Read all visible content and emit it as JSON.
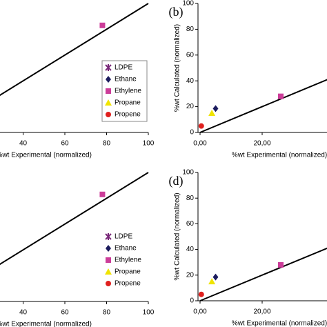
{
  "chart_data": [
    {
      "type": "scatter",
      "label": null,
      "xlabel": "%wt Experimental (normalized)",
      "ylabel": null,
      "xlim": [
        0,
        100
      ],
      "ylim": [
        0,
        100
      ],
      "xticks": [
        40,
        60,
        80,
        100
      ],
      "line": {
        "x": [
          0,
          100
        ],
        "values": [
          0,
          100
        ]
      },
      "legend": "right",
      "legend_frame": true,
      "series": [
        {
          "name": "LDPE",
          "color": "#7a2a7a",
          "marker": "asterisk",
          "x": [],
          "values": []
        },
        {
          "name": "Ethane",
          "color": "#1c1c5e",
          "marker": "diamond",
          "x": [],
          "values": []
        },
        {
          "name": "Ethylene",
          "color": "#cc3d99",
          "marker": "square",
          "x": [
            78
          ],
          "values": [
            83
          ]
        },
        {
          "name": "Propane",
          "color": "#f0e400",
          "marker": "triangle",
          "x": [],
          "values": []
        },
        {
          "name": "Propene",
          "color": "#e0201e",
          "marker": "circle",
          "x": [],
          "values": []
        }
      ]
    },
    {
      "type": "scatter",
      "label": "(b)",
      "xlabel": "%wt Experimental (normalized)",
      "ylabel": "%wt Calculated (normalized)",
      "xlim": [
        0,
        100
      ],
      "ylim": [
        0,
        100
      ],
      "xticks": [
        {
          "value": 0,
          "label": "0,00"
        },
        {
          "value": 20,
          "label": "20,00"
        }
      ],
      "yticks": [
        0,
        20,
        40,
        60,
        80,
        100
      ],
      "line": {
        "x": [
          0,
          100
        ],
        "values": [
          0,
          100
        ]
      },
      "series": [
        {
          "name": "Ethane",
          "color": "#1c1c5e",
          "marker": "diamond",
          "x": [
            5
          ],
          "values": [
            18.5
          ]
        },
        {
          "name": "Ethylene",
          "color": "#cc3d99",
          "marker": "square",
          "x": [
            26
          ],
          "values": [
            28
          ]
        },
        {
          "name": "Propane",
          "color": "#f0e400",
          "marker": "triangle",
          "x": [
            3.8
          ],
          "values": [
            15
          ]
        },
        {
          "name": "Propene",
          "color": "#e0201e",
          "marker": "circle",
          "x": [
            0.4
          ],
          "values": [
            5
          ]
        }
      ]
    },
    {
      "type": "scatter",
      "label": null,
      "xlabel": "%wt Experimental (normalized)",
      "ylabel": null,
      "xlim": [
        0,
        100
      ],
      "ylim": [
        0,
        100
      ],
      "xticks": [
        40,
        60,
        80,
        100
      ],
      "line": {
        "x": [
          0,
          100
        ],
        "values": [
          0,
          100
        ]
      },
      "legend": "right",
      "legend_frame": false,
      "series": [
        {
          "name": "LDPE",
          "color": "#7a2a7a",
          "marker": "asterisk",
          "x": [],
          "values": []
        },
        {
          "name": "Ethane",
          "color": "#1c1c5e",
          "marker": "diamond",
          "x": [],
          "values": []
        },
        {
          "name": "Ethylene",
          "color": "#cc3d99",
          "marker": "square",
          "x": [
            78
          ],
          "values": [
            83
          ]
        },
        {
          "name": "Propane",
          "color": "#f0e400",
          "marker": "triangle",
          "x": [],
          "values": []
        },
        {
          "name": "Propene",
          "color": "#e0201e",
          "marker": "circle",
          "x": [],
          "values": []
        }
      ]
    },
    {
      "type": "scatter",
      "label": "(d)",
      "xlabel": "%wt Experimental (normalized)",
      "ylabel": "%wt Calculated (normalized)",
      "xlim": [
        0,
        100
      ],
      "ylim": [
        0,
        100
      ],
      "xticks": [
        {
          "value": 0,
          "label": "0,00"
        },
        {
          "value": 20,
          "label": "20,00"
        }
      ],
      "yticks": [
        0,
        20,
        40,
        60,
        80,
        100
      ],
      "line": {
        "x": [
          0,
          100
        ],
        "values": [
          0,
          100
        ]
      },
      "series": [
        {
          "name": "Ethane",
          "color": "#1c1c5e",
          "marker": "diamond",
          "x": [
            5
          ],
          "values": [
            18.5
          ]
        },
        {
          "name": "Ethylene",
          "color": "#cc3d99",
          "marker": "square",
          "x": [
            26
          ],
          "values": [
            28
          ]
        },
        {
          "name": "Propane",
          "color": "#f0e400",
          "marker": "triangle",
          "x": [
            3.8
          ],
          "values": [
            15
          ]
        },
        {
          "name": "Propene",
          "color": "#e0201e",
          "marker": "circle",
          "x": [
            0.4
          ],
          "values": [
            5
          ]
        }
      ]
    }
  ]
}
